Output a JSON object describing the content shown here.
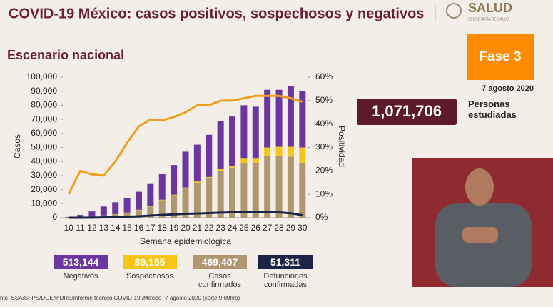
{
  "header": {
    "title": "COVID-19 México: casos positivos, sospechosos y negativos",
    "subtitle": "Escenario nacional",
    "logo": "SALUD",
    "logo_sub": "SECRETARÍA DE SALUD"
  },
  "side": {
    "phase": "Fase 3",
    "date": "7 agosto 2020",
    "people": "1,071,706",
    "people_label": "Personas estudiadas"
  },
  "source": "nte: SSA/SPPS/DGE/InDRE/Informe técnico.COVID-19 /México- 7 agosto 2020 (corte 9:00hrs)",
  "chart_data": {
    "type": "bar",
    "stacked": true,
    "x_label": "Semana epidemiológica",
    "y_label": "Casos",
    "y2_label": "Positividad",
    "categories": [
      "10",
      "11",
      "12",
      "13",
      "14",
      "15",
      "16",
      "17",
      "18",
      "19",
      "20",
      "21",
      "22",
      "23",
      "24",
      "25",
      "26",
      "27",
      "28",
      "29",
      "30"
    ],
    "ylim": [
      0,
      100000
    ],
    "yticks": [
      0,
      {
        "value": 10000,
        "label": "10,000"
      },
      {
        "value": 20000,
        "label": "20,000"
      },
      {
        "value": 30000,
        "label": "30,000"
      },
      {
        "value": 40000,
        "label": "40,000"
      },
      {
        "value": 50000,
        "label": "50,000"
      },
      {
        "value": 60000,
        "label": "60,000"
      },
      {
        "value": 70000,
        "label": "70,000"
      },
      {
        "value": 80000,
        "label": "80,000"
      },
      {
        "value": 90000,
        "label": "90,000"
      },
      {
        "value": 100000,
        "label": "100,000"
      }
    ],
    "y2lim": [
      0,
      60
    ],
    "y2ticks": [
      {
        "value": 0,
        "label": "0%"
      },
      {
        "value": 10,
        "label": "10%"
      },
      {
        "value": 20,
        "label": "20%"
      },
      {
        "value": 30,
        "label": "30%"
      },
      {
        "value": 40,
        "label": "40%"
      },
      {
        "value": 50,
        "label": "50%"
      },
      {
        "value": 60,
        "label": "60%"
      }
    ],
    "series": [
      {
        "name": "Casos confirmados",
        "total": "469,407",
        "kind": "bar",
        "color": "#b09770",
        "values": [
          100,
          300,
          800,
          1500,
          2500,
          3500,
          5500,
          8000,
          12500,
          16000,
          21000,
          25000,
          28000,
          33000,
          35000,
          39000,
          39000,
          44000,
          44000,
          43500,
          39000
        ]
      },
      {
        "name": "Sospechosos",
        "total": "89,155",
        "kind": "bar",
        "color": "#f5c518",
        "values": [
          0,
          0,
          0,
          100,
          100,
          200,
          200,
          300,
          300,
          400,
          500,
          800,
          1000,
          1500,
          1500,
          3000,
          3000,
          6000,
          6500,
          7000,
          11000
        ]
      },
      {
        "name": "Negativos",
        "total": "513,144",
        "kind": "bar",
        "color": "#6b36a0",
        "values": [
          400,
          1700,
          3700,
          6400,
          8400,
          10300,
          12800,
          15700,
          18200,
          21100,
          25500,
          26200,
          30000,
          34000,
          35500,
          38000,
          37000,
          41000,
          40500,
          43000,
          40000
        ]
      },
      {
        "name": "Defunciones confirmadas",
        "total": "51,311",
        "kind": "line",
        "color": "#1b2444",
        "values": [
          0,
          0,
          50,
          200,
          400,
          700,
          1000,
          1500,
          2000,
          2400,
          2800,
          3000,
          3300,
          3600,
          3800,
          3900,
          3900,
          4000,
          3800,
          3200,
          1800
        ]
      },
      {
        "kind": "line",
        "axis": "y2",
        "color": "#f0a020",
        "values": [
          10,
          20,
          18.5,
          18,
          24,
          32,
          39,
          42,
          41.5,
          43,
          45,
          48,
          48,
          50,
          50,
          51,
          52,
          52,
          52,
          51,
          49.5
        ]
      }
    ],
    "legend_order": [
      2,
      1,
      0,
      3
    ]
  }
}
